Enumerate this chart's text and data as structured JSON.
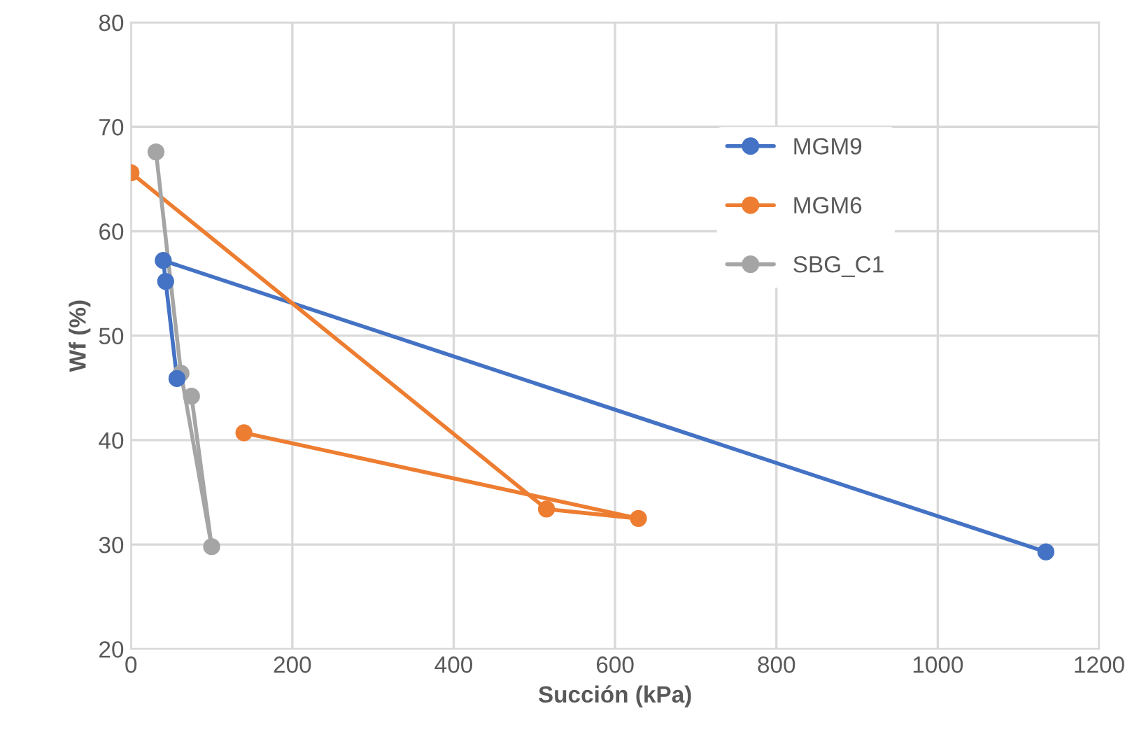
{
  "chart_data": {
    "type": "line",
    "xlabel": "Succión (kPa)",
    "ylabel": "Wf (%)",
    "xlim": [
      0,
      1200
    ],
    "xticks": [
      0,
      200,
      400,
      600,
      800,
      1000,
      1200
    ],
    "ylim": [
      20,
      80
    ],
    "yticks": [
      20,
      30,
      40,
      50,
      60,
      70,
      80
    ],
    "grid": true,
    "legend": "top right",
    "marker": "circle",
    "line_style": "solid",
    "series": [
      {
        "name": "MGM9",
        "color": "#4472c4",
        "x": [
          1134,
          40,
          57,
          43
        ],
        "values": [
          29.3,
          57.2,
          45.9,
          55.2
        ]
      },
      {
        "name": "MGM6",
        "color": "#ed7d31",
        "x": [
          0,
          515,
          629,
          140
        ],
        "values": [
          65.6,
          33.4,
          32.5,
          40.7
        ]
      },
      {
        "name": "SBG_C1",
        "color": "#a5a5a5",
        "x": [
          31,
          62,
          100,
          75
        ],
        "values": [
          67.6,
          46.4,
          29.8,
          44.2
        ]
      }
    ]
  }
}
